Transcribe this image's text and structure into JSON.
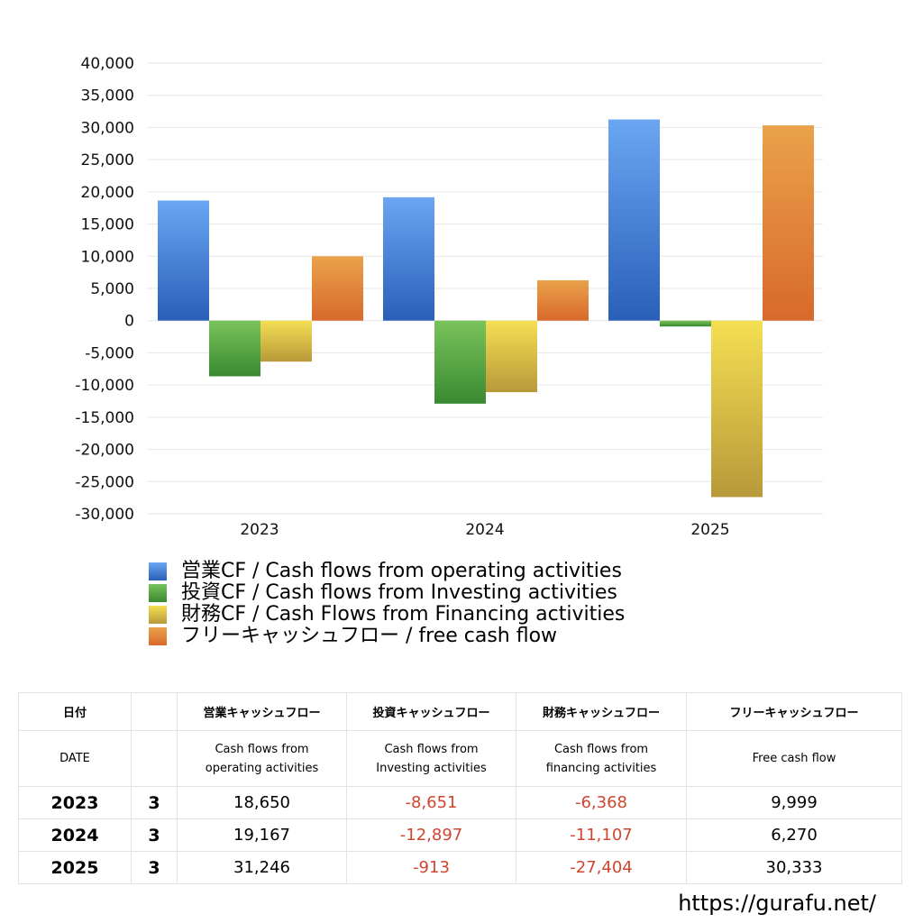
{
  "chart_data": {
    "type": "bar",
    "categories": [
      "2023",
      "2024",
      "2025"
    ],
    "series": [
      {
        "name": "営業CF / Cash flows from operating activities",
        "values": [
          18650,
          19167,
          31246
        ]
      },
      {
        "name": "投資CF / Cash flows from Investing activities",
        "values": [
          -8651,
          -12897,
          -913
        ]
      },
      {
        "name": "財務CF / Cash Flows from Financing activities",
        "values": [
          -6368,
          -11107,
          -27404
        ]
      },
      {
        "name": "フリーキャッシュフロー / free cash flow",
        "values": [
          9999,
          6270,
          30333
        ]
      }
    ],
    "ylim": [
      -30000,
      40000
    ],
    "yticks": [
      40000,
      35000,
      30000,
      25000,
      20000,
      15000,
      10000,
      5000,
      0,
      -5000,
      -10000,
      -15000,
      -20000,
      -25000,
      -30000
    ],
    "ytick_labels": [
      "40,000",
      "35,000",
      "30,000",
      "25,000",
      "20,000",
      "15,000",
      "10,000",
      "5,000",
      "0",
      "-5,000",
      "-10,000",
      "-15,000",
      "-20,000",
      "-25,000",
      "-30,000"
    ],
    "title": "",
    "xlabel": "",
    "ylabel": "",
    "grid": true,
    "legend_position": "bottom",
    "colors": {
      "operating": [
        "#6aa6f2",
        "#2a5fb8"
      ],
      "investing": [
        "#7ac35b",
        "#3a8a32"
      ],
      "financing": [
        "#f5df52",
        "#b8993a"
      ],
      "free": [
        "#eaa24a",
        "#d8692c"
      ]
    }
  },
  "legend": [
    {
      "label": "営業CF / Cash flows from operating activities",
      "color": "#3d7fdc"
    },
    {
      "label": "投資CF / Cash flows from Investing activities",
      "color": "#55a844"
    },
    {
      "label": "財務CF / Cash Flows from Financing activities",
      "color": "#e2c64a"
    },
    {
      "label": "フリーキャッシュフロー / free cash flow",
      "color": "#e08838"
    }
  ],
  "table": {
    "header_jp": {
      "date": "日付",
      "operating": "営業キャッシュフロー",
      "investing": "投資キャッシュフロー",
      "financing": "財務キャッシュフロー",
      "free": "フリーキャッシュフロー"
    },
    "header_en": {
      "date": "DATE",
      "operating_1": "Cash flows from",
      "operating_2": "operating activities",
      "investing_1": "Cash flows from",
      "investing_2": "Investing activities",
      "financing_1": "Cash flows from",
      "financing_2": "financing activities",
      "free": "Free cash flow"
    },
    "rows": [
      {
        "year": "2023",
        "month": "3",
        "operating": "18,650",
        "investing": "-8,651",
        "financing": "-6,368",
        "free": "9,999"
      },
      {
        "year": "2024",
        "month": "3",
        "operating": "19,167",
        "investing": "-12,897",
        "financing": "-11,107",
        "free": "6,270"
      },
      {
        "year": "2025",
        "month": "3",
        "operating": "31,246",
        "investing": "-913",
        "financing": "-27,404",
        "free": "30,333"
      }
    ]
  },
  "site_url": "https://gurafu.net/"
}
